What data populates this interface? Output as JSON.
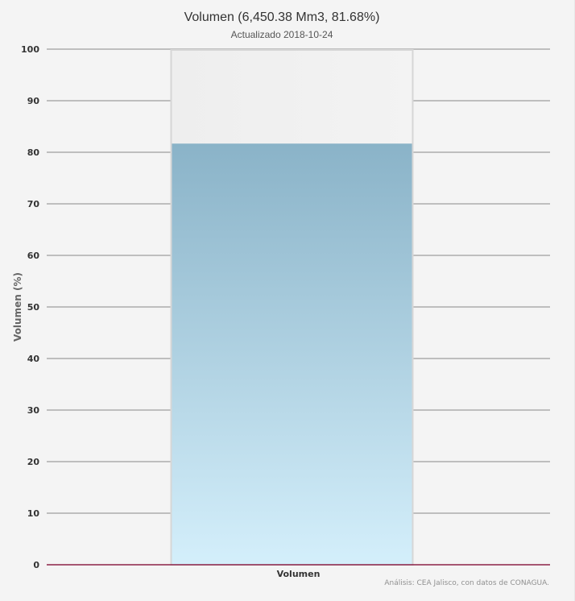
{
  "chart_data": {
    "type": "bar",
    "title": "Volumen (6,450.38 Mm3, 81.68%)",
    "subtitle": "Actualizado 2018-10-24",
    "categories": [
      "Volumen"
    ],
    "series": [
      {
        "values": [
          81.68
        ]
      }
    ],
    "capacity": 100,
    "ylabel": "Volumen (%)",
    "xlabel": "",
    "ylim": [
      0,
      100
    ],
    "yticks": [
      0,
      10,
      20,
      30,
      40,
      50,
      60,
      70,
      80,
      90,
      100
    ],
    "grid": true,
    "legend": "none",
    "credits": "Análisis: CEA Jalisco, con datos de CONAGUA."
  },
  "colors": {
    "fill_top": "#8ab3c8",
    "fill_bottom": "#d4effb",
    "empty_top": "#eeeeee",
    "empty_bottom": "#f3f3f3",
    "gridline": "#888888",
    "baseline": "#8b2147"
  }
}
